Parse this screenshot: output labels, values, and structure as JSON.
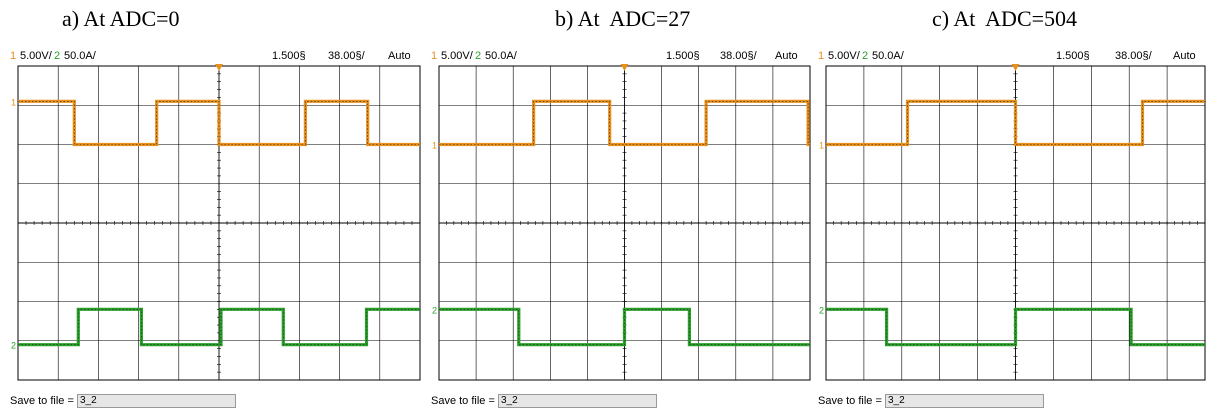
{
  "chart_data": [
    {
      "type": "line",
      "title": "a) At ADC=0",
      "header": {
        "ch1_num": "1",
        "ch1_scale": "5.00V/",
        "ch2_num": "2",
        "ch2_scale": "50.0A/",
        "delay": "1.500§",
        "timebase": "38.00§/",
        "mode": "Auto"
      },
      "grid": true,
      "xlim": [
        0,
        10
      ],
      "ylim": [
        0,
        8
      ],
      "series": [
        {
          "color": "#e8901c",
          "x": [
            0,
            1.4,
            1.4,
            3.45,
            3.45,
            5.0,
            5.0,
            7.15,
            7.15,
            8.7,
            8.7,
            10
          ],
          "y": [
            7.1,
            7.1,
            6.0,
            6.0,
            7.1,
            7.1,
            6.0,
            6.0,
            7.1,
            7.1,
            6.0,
            6.0
          ]
        },
        {
          "color": "#2aa02a",
          "x": [
            0,
            1.5,
            1.5,
            3.07,
            3.07,
            5.05,
            5.05,
            6.6,
            6.6,
            8.67,
            8.67,
            10
          ],
          "y": [
            0.9,
            0.9,
            1.8,
            1.8,
            0.9,
            0.9,
            1.8,
            1.8,
            0.9,
            0.9,
            1.8,
            1.8
          ]
        }
      ],
      "ground_labels": [
        "1",
        "2"
      ],
      "footer": {
        "label": "Save to file =",
        "value": "3_2"
      }
    },
    {
      "type": "line",
      "title": "b) At  ADC=27",
      "header": {
        "ch1_num": "1",
        "ch1_scale": "5.00V/",
        "ch2_num": "2",
        "ch2_scale": "50.0A/",
        "delay": "1.500§",
        "timebase": "38.00§/",
        "mode": "Auto"
      },
      "grid": true,
      "xlim": [
        0,
        10
      ],
      "ylim": [
        0,
        8
      ],
      "series": [
        {
          "color": "#e8901c",
          "x": [
            0,
            2.55,
            2.55,
            4.6,
            4.6,
            7.2,
            7.2,
            9.95,
            9.95,
            10
          ],
          "y": [
            6.0,
            6.0,
            7.1,
            7.1,
            6.0,
            6.0,
            7.1,
            7.1,
            6.0,
            6.0
          ]
        },
        {
          "color": "#2aa02a",
          "x": [
            0,
            2.15,
            2.15,
            5.0,
            5.0,
            6.75,
            6.75,
            10
          ],
          "y": [
            1.8,
            1.8,
            0.9,
            0.9,
            1.8,
            1.8,
            0.9,
            0.9
          ]
        }
      ],
      "ground_labels": [
        "1",
        "2"
      ],
      "footer": {
        "label": "Save to file =",
        "value": "3_2"
      }
    },
    {
      "type": "line",
      "title": "c) At  ADC=504",
      "header": {
        "ch1_num": "1",
        "ch1_scale": "5.00V/",
        "ch2_num": "2",
        "ch2_scale": "50.0A/",
        "delay": "1.500§",
        "timebase": "38.00§/",
        "mode": "Auto"
      },
      "grid": true,
      "xlim": [
        0,
        10
      ],
      "ylim": [
        0,
        8
      ],
      "series": [
        {
          "color": "#e8901c",
          "x": [
            0,
            2.15,
            2.15,
            5.0,
            5.0,
            8.35,
            8.35,
            10
          ],
          "y": [
            6.0,
            6.0,
            7.1,
            7.1,
            6.0,
            6.0,
            7.1,
            7.1
          ]
        },
        {
          "color": "#2aa02a",
          "x": [
            0,
            1.6,
            1.6,
            5.0,
            5.0,
            8.05,
            8.05,
            10
          ],
          "y": [
            1.8,
            1.8,
            0.9,
            0.9,
            1.8,
            1.8,
            0.9,
            0.9
          ]
        }
      ],
      "ground_labels": [
        "1",
        "2"
      ],
      "footer": {
        "label": "Save to file =",
        "value": "3_2"
      }
    }
  ]
}
